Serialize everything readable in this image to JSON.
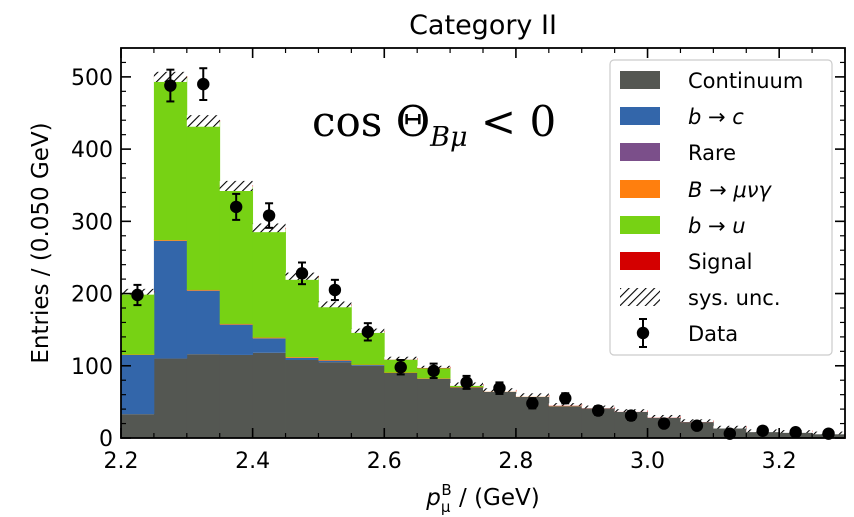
{
  "chart_data": {
    "type": "bar",
    "title": "Category II",
    "annotation": "cos Θ_Bμ < 0",
    "xlabel": "p_μ^B / (GeV)",
    "ylabel": "Entries / (0.050 GeV)",
    "xlim": [
      2.2,
      3.3
    ],
    "ylim": [
      0,
      540
    ],
    "xticks": [
      "2.2",
      "2.4",
      "2.6",
      "2.8",
      "3.0",
      "3.2"
    ],
    "yticks": [
      "0",
      "100",
      "200",
      "300",
      "400",
      "500"
    ],
    "grid": false,
    "stacked": true,
    "legend_position": "top-right",
    "bin_edges": [
      2.2,
      2.25,
      2.3,
      2.35,
      2.4,
      2.45,
      2.5,
      2.55,
      2.6,
      2.65,
      2.7,
      2.75,
      2.8,
      2.85,
      2.9,
      2.95,
      3.0,
      3.05,
      3.1,
      3.15,
      3.2,
      3.25,
      3.3
    ],
    "series": [
      {
        "name": "Continuum",
        "color": "#545752",
        "values": [
          33,
          110,
          116,
          115,
          118,
          108,
          105,
          100,
          90,
          82,
          70,
          64,
          57,
          44,
          41,
          36,
          28,
          22,
          14,
          9,
          8,
          6
        ]
      },
      {
        "name": "b → c",
        "color": "#3366aa",
        "values": [
          82,
          163,
          88,
          42,
          20,
          3,
          2,
          1,
          0,
          0,
          0,
          0,
          0,
          0,
          0,
          0,
          0,
          0,
          0,
          0,
          0,
          0
        ]
      },
      {
        "name": "Rare",
        "color": "#7b4f8a",
        "values": [
          0,
          0,
          0,
          0,
          0,
          0,
          0,
          0,
          0,
          0,
          0,
          0,
          0,
          0,
          0,
          0,
          0,
          0,
          0,
          0,
          0,
          0
        ]
      },
      {
        "name": "B → μνγ",
        "color": "#ff7f0e",
        "values": [
          0.5,
          1,
          1,
          1,
          1,
          1,
          1,
          0.5,
          0.5,
          0.5,
          0.5,
          0.5,
          0.5,
          0.5,
          0,
          0,
          0,
          0,
          0,
          0,
          0,
          0
        ]
      },
      {
        "name": "b → u",
        "color": "#77d214",
        "values": [
          86,
          225,
          233,
          190,
          150,
          110,
          75,
          45,
          18,
          14,
          2,
          0,
          0,
          0,
          0,
          0,
          0,
          0,
          0,
          0,
          0,
          0
        ]
      },
      {
        "name": "Signal",
        "color": "#d40000",
        "values": [
          1,
          1,
          1,
          1,
          2,
          2,
          2,
          2,
          2,
          2,
          2,
          2,
          2,
          2,
          2,
          2,
          2,
          2,
          1,
          1,
          1,
          1
        ]
      }
    ],
    "sys_unc": {
      "name": "sys. unc.",
      "half_width": [
        4,
        7,
        8,
        7,
        6,
        5,
        4,
        3,
        2,
        1.5,
        1,
        1,
        1,
        0.5,
        0.5,
        0.5,
        0.5,
        0.5,
        0.5,
        0.5,
        0.5,
        0.5
      ]
    },
    "data": {
      "name": "Data",
      "x": [
        2.225,
        2.275,
        2.325,
        2.375,
        2.425,
        2.475,
        2.525,
        2.575,
        2.625,
        2.675,
        2.725,
        2.775,
        2.825,
        2.875,
        2.925,
        2.975,
        3.025,
        3.075,
        3.125,
        3.175,
        3.225,
        3.275
      ],
      "y": [
        198,
        488,
        490,
        320,
        308,
        228,
        205,
        147,
        98,
        93,
        77,
        69,
        48,
        55,
        38,
        31,
        20,
        17,
        6,
        10,
        8,
        6
      ],
      "err": [
        14,
        22,
        22,
        18,
        17,
        15,
        14,
        12,
        10,
        10,
        9,
        8,
        7,
        7,
        6,
        6,
        4,
        4,
        3,
        3,
        3,
        3
      ]
    }
  }
}
